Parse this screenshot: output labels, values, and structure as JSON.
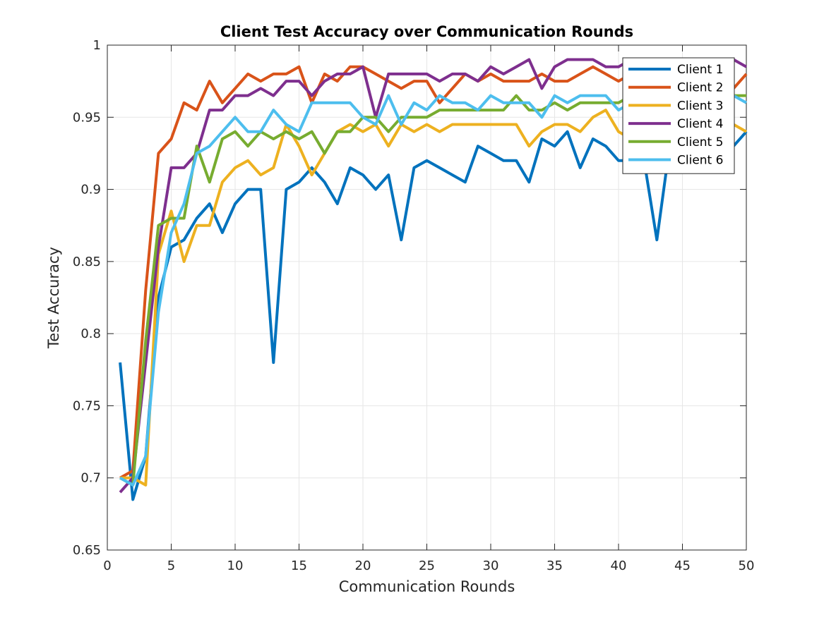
{
  "chart_data": {
    "type": "line",
    "title": "Client Test Accuracy over Communication Rounds",
    "xlabel": "Communication Rounds",
    "ylabel": "Test Accuracy",
    "xlim": [
      0,
      50
    ],
    "ylim": [
      0.65,
      1
    ],
    "xticks": [
      0,
      5,
      10,
      15,
      20,
      25,
      30,
      35,
      40,
      45,
      50
    ],
    "yticks": [
      0.65,
      0.7,
      0.75,
      0.8,
      0.85,
      0.9,
      0.95,
      1
    ],
    "xtick_labels": [
      "0",
      "5",
      "10",
      "15",
      "20",
      "25",
      "30",
      "35",
      "40",
      "45",
      "50"
    ],
    "ytick_labels": [
      "0.65",
      "0.7",
      "0.75",
      "0.8",
      "0.85",
      "0.9",
      "0.95",
      "1"
    ],
    "grid": true,
    "legend_position": "top-right",
    "x": [
      1,
      2,
      3,
      4,
      5,
      6,
      7,
      8,
      9,
      10,
      11,
      12,
      13,
      14,
      15,
      16,
      17,
      18,
      19,
      20,
      21,
      22,
      23,
      24,
      25,
      26,
      27,
      28,
      29,
      30,
      31,
      32,
      33,
      34,
      35,
      36,
      37,
      38,
      39,
      40,
      41,
      42,
      43,
      44,
      45,
      46,
      47,
      48,
      49,
      50
    ],
    "series": [
      {
        "name": "Client 1",
        "color": "#0072BD",
        "values": [
          0.78,
          0.685,
          0.715,
          0.825,
          0.86,
          0.865,
          0.88,
          0.89,
          0.87,
          0.89,
          0.9,
          0.9,
          0.78,
          0.9,
          0.905,
          0.915,
          0.905,
          0.89,
          0.915,
          0.91,
          0.9,
          0.91,
          0.865,
          0.915,
          0.92,
          0.915,
          0.91,
          0.905,
          0.93,
          0.925,
          0.92,
          0.92,
          0.905,
          0.935,
          0.93,
          0.94,
          0.915,
          0.935,
          0.93,
          0.92,
          0.92,
          0.92,
          0.865,
          0.93,
          0.93,
          0.93,
          0.93,
          0.92,
          0.93,
          0.94
        ]
      },
      {
        "name": "Client 2",
        "color": "#D95319",
        "values": [
          0.7,
          0.705,
          0.83,
          0.925,
          0.935,
          0.96,
          0.955,
          0.975,
          0.96,
          0.97,
          0.98,
          0.975,
          0.98,
          0.98,
          0.985,
          0.96,
          0.98,
          0.975,
          0.985,
          0.985,
          0.98,
          0.975,
          0.97,
          0.975,
          0.975,
          0.96,
          0.97,
          0.98,
          0.975,
          0.98,
          0.975,
          0.975,
          0.975,
          0.98,
          0.975,
          0.975,
          0.98,
          0.985,
          0.98,
          0.975,
          0.98,
          0.975,
          0.98,
          0.975,
          0.97,
          0.975,
          0.97,
          0.965,
          0.97,
          0.98
        ]
      },
      {
        "name": "Client 3",
        "color": "#EDB120",
        "values": [
          0.7,
          0.7,
          0.695,
          0.855,
          0.885,
          0.85,
          0.875,
          0.875,
          0.905,
          0.915,
          0.92,
          0.91,
          0.915,
          0.945,
          0.93,
          0.91,
          0.925,
          0.94,
          0.945,
          0.94,
          0.945,
          0.93,
          0.945,
          0.94,
          0.945,
          0.94,
          0.945,
          0.945,
          0.945,
          0.945,
          0.945,
          0.945,
          0.93,
          0.94,
          0.945,
          0.945,
          0.94,
          0.95,
          0.955,
          0.94,
          0.935,
          0.94,
          0.935,
          0.94,
          0.94,
          0.945,
          0.945,
          0.945,
          0.945,
          0.94
        ]
      },
      {
        "name": "Client 4",
        "color": "#7E2F8E",
        "values": [
          0.69,
          0.7,
          0.78,
          0.86,
          0.915,
          0.915,
          0.925,
          0.955,
          0.955,
          0.965,
          0.965,
          0.97,
          0.965,
          0.975,
          0.975,
          0.965,
          0.975,
          0.98,
          0.98,
          0.985,
          0.95,
          0.98,
          0.98,
          0.98,
          0.98,
          0.975,
          0.98,
          0.98,
          0.975,
          0.985,
          0.98,
          0.985,
          0.99,
          0.97,
          0.985,
          0.99,
          0.99,
          0.99,
          0.985,
          0.985,
          0.99,
          0.99,
          0.985,
          0.99,
          0.99,
          0.985,
          0.99,
          0.99,
          0.99,
          0.985
        ]
      },
      {
        "name": "Client 5",
        "color": "#77AC30",
        "values": [
          0.7,
          0.695,
          0.795,
          0.875,
          0.88,
          0.88,
          0.93,
          0.905,
          0.935,
          0.94,
          0.93,
          0.94,
          0.935,
          0.94,
          0.935,
          0.94,
          0.925,
          0.94,
          0.94,
          0.95,
          0.95,
          0.94,
          0.95,
          0.95,
          0.95,
          0.955,
          0.955,
          0.955,
          0.955,
          0.955,
          0.955,
          0.965,
          0.955,
          0.955,
          0.96,
          0.955,
          0.96,
          0.96,
          0.96,
          0.96,
          0.965,
          0.96,
          0.96,
          0.965,
          0.965,
          0.96,
          0.965,
          0.965,
          0.965,
          0.965
        ]
      },
      {
        "name": "Client 6",
        "color": "#4DBEEE",
        "values": [
          0.7,
          0.695,
          0.715,
          0.815,
          0.87,
          0.89,
          0.925,
          0.93,
          0.94,
          0.95,
          0.94,
          0.94,
          0.955,
          0.945,
          0.94,
          0.96,
          0.96,
          0.96,
          0.96,
          0.95,
          0.945,
          0.965,
          0.945,
          0.96,
          0.955,
          0.965,
          0.96,
          0.96,
          0.955,
          0.965,
          0.96,
          0.96,
          0.96,
          0.95,
          0.965,
          0.96,
          0.965,
          0.965,
          0.965,
          0.955,
          0.96,
          0.96,
          0.965,
          0.96,
          0.955,
          0.96,
          0.96,
          0.965,
          0.965,
          0.96
        ]
      }
    ]
  }
}
